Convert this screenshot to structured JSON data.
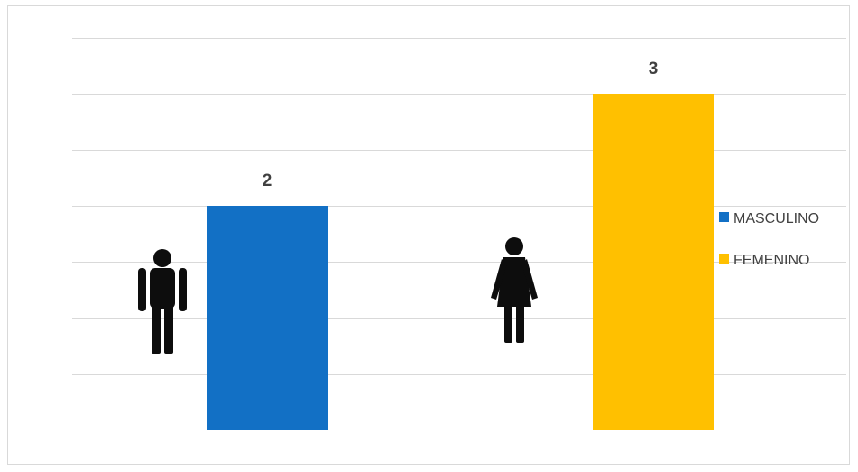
{
  "chart_data": {
    "type": "bar",
    "title": "",
    "xlabel": "",
    "ylabel": "",
    "categories": [
      "MASCULINO",
      "FEMENINO"
    ],
    "values": [
      2,
      3
    ],
    "colors": [
      "#1270C5",
      "#FFC000"
    ],
    "ylim": [
      0,
      3.5
    ],
    "grid": true,
    "gridline_step": 0.5,
    "legend_position": "right",
    "category_icons": [
      "man-icon",
      "woman-icon"
    ],
    "show_data_labels": true
  }
}
